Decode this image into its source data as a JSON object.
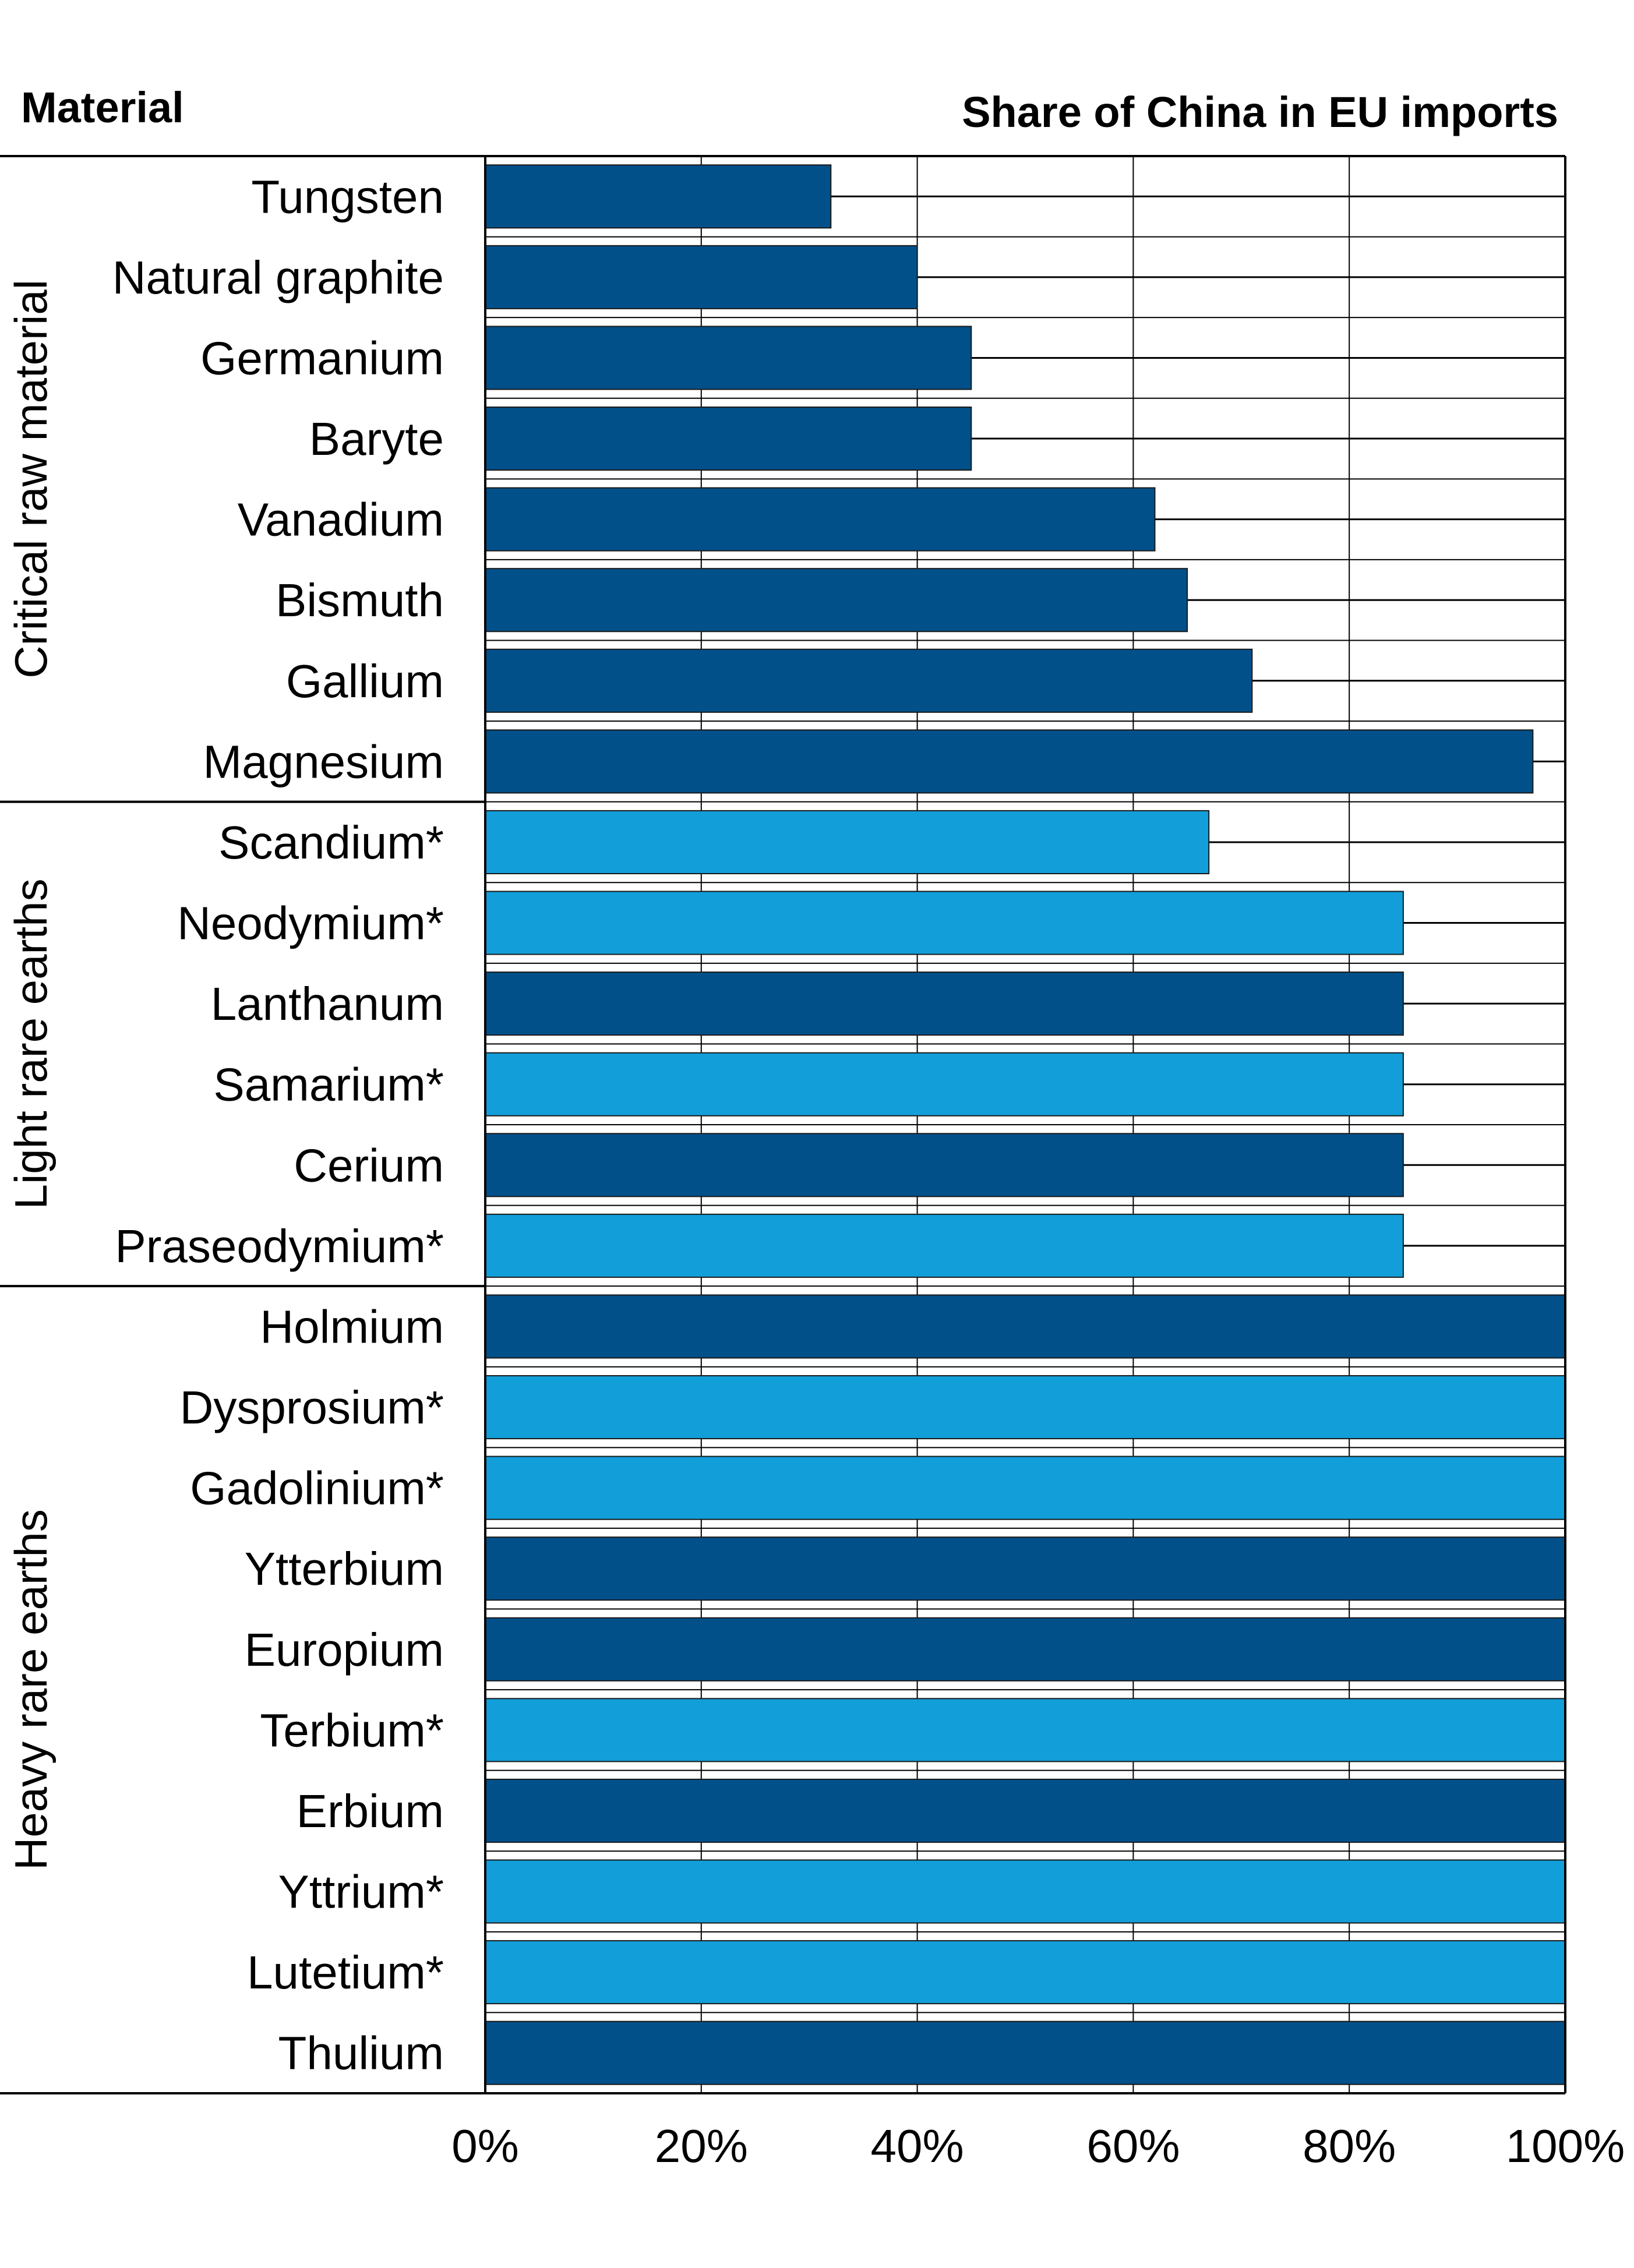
{
  "header": {
    "left": "Material",
    "right": "Share of China in EU imports"
  },
  "colors": {
    "dark": "#02508a",
    "light": "#129ed9",
    "grid": "#000000"
  },
  "chart_data": {
    "type": "bar",
    "orientation": "horizontal",
    "xlim": [
      0,
      100
    ],
    "x_ticks": [
      "0%",
      "20%",
      "40%",
      "60%",
      "80%",
      "100%"
    ],
    "tick_values": [
      0,
      20,
      40,
      60,
      80,
      100
    ],
    "grid": true,
    "groups": [
      {
        "name": "Critical raw material",
        "start": 0,
        "count": 8
      },
      {
        "name": "Light rare earths",
        "start": 8,
        "count": 6
      },
      {
        "name": "Heavy rare earths",
        "start": 14,
        "count": 10
      }
    ],
    "categories": [
      "Tungsten",
      "Natural graphite",
      "Germanium",
      "Baryte",
      "Vanadium",
      "Bismuth",
      "Gallium",
      "Magnesium",
      "Scandium*",
      "Neodymium*",
      "Lanthanum",
      "Samarium*",
      "Cerium",
      "Praseodymium*",
      "Holmium",
      "Dysprosium*",
      "Gadolinium*",
      "Ytterbium",
      "Europium",
      "Terbium*",
      "Erbium",
      "Yttrium*",
      "Lutetium*",
      "Thulium"
    ],
    "values": [
      32,
      40,
      45,
      45,
      62,
      65,
      71,
      97,
      67,
      85,
      85,
      85,
      85,
      85,
      100,
      100,
      100,
      100,
      100,
      100,
      100,
      100,
      100,
      100
    ],
    "bar_colors": [
      "dark",
      "dark",
      "dark",
      "dark",
      "dark",
      "dark",
      "dark",
      "dark",
      "light",
      "light",
      "dark",
      "light",
      "dark",
      "light",
      "dark",
      "light",
      "light",
      "dark",
      "dark",
      "light",
      "dark",
      "light",
      "light",
      "dark"
    ]
  }
}
